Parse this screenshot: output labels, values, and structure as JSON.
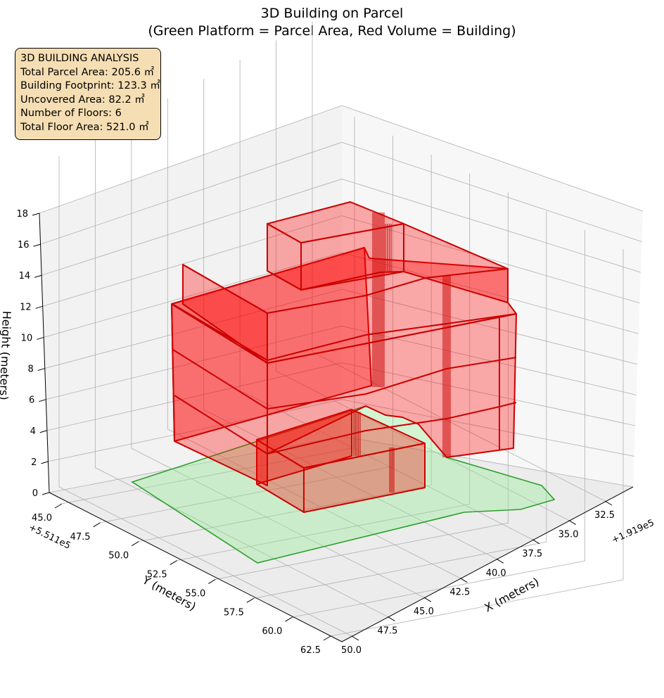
{
  "chart_data": {
    "type": "3d-polygon",
    "title": "3D Building on Parcel",
    "subtitle": "(Green Platform = Parcel Area, Red Volume = Building)",
    "xlabel": "X (meters)",
    "ylabel": "Y (meters)",
    "zlabel": "Height (meters)",
    "x_offset": "+1.919e5",
    "y_offset": "+5.511e5",
    "x_ticks": [
      "32.5",
      "35.0",
      "37.5",
      "40.0",
      "42.5",
      "45.0",
      "47.5",
      "50.0"
    ],
    "y_ticks": [
      "45.0",
      "47.5",
      "50.0",
      "52.5",
      "55.0",
      "57.5",
      "60.0",
      "62.5"
    ],
    "z_ticks": [
      "0",
      "2",
      "4",
      "6",
      "8",
      "10",
      "12",
      "14",
      "16",
      "18"
    ],
    "zlim": [
      0,
      18
    ],
    "grid": true,
    "parcel": {
      "name": "Parcel Area",
      "color": "#2ca02c",
      "fill": "#90ee90",
      "area_m2": 205.6
    },
    "building": {
      "name": "Building",
      "color": "#cc0000",
      "fill": "#ff0000",
      "footprint_m2": 123.3,
      "floors": 6,
      "total_floor_area_m2": 521.0,
      "max_height_m": 18
    },
    "info_box": {
      "heading": "3D BUILDING ANALYSIS",
      "lines": [
        "Total Parcel Area: 205.6 ㎡",
        "Building Footprint: 123.3 ㎡",
        "Uncovered Area: 82.2 ㎡",
        "Number of Floors: 6",
        "Total Floor Area: 521.0 ㎡"
      ],
      "background": "#f5deb3"
    }
  }
}
